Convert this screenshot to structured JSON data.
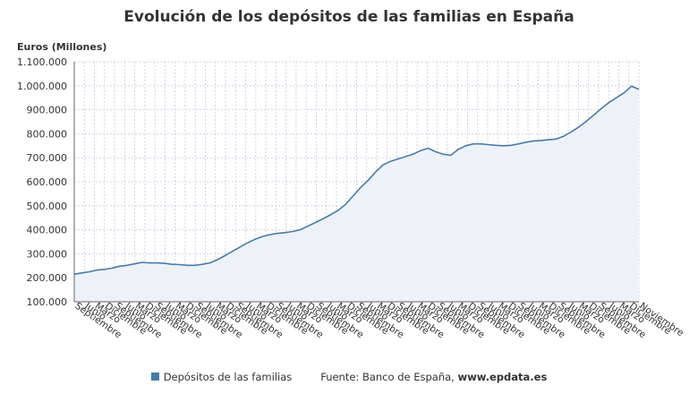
{
  "chart_data": {
    "type": "area",
    "title": "Evolución de los depósitos de las familias en España",
    "ylabel": "Euros (Millones)",
    "ylim": [
      100000,
      1100000
    ],
    "y_ticks": [
      100000,
      200000,
      300000,
      400000,
      500000,
      600000,
      700000,
      800000,
      900000,
      1000000,
      1100000
    ],
    "y_tick_labels": [
      "100.000",
      "200.000",
      "300.000",
      "400.000",
      "500.000",
      "600.000",
      "700.000",
      "800.000",
      "900.000",
      "1.000.000",
      "1.100.000"
    ],
    "x_tick_labels": [
      "Septiembre",
      "Junio",
      "Marzo",
      "Diciembre",
      "Septiembre",
      "Junio",
      "Marzo",
      "Diciembre",
      "Septiembre",
      "Junio",
      "Marzo",
      "Diciembre",
      "Septiembre",
      "Junio",
      "Marzo",
      "Diciembre",
      "Septiembre",
      "Junio",
      "Marzo",
      "Diciembre",
      "Septiembre",
      "Junio",
      "Marzo",
      "Diciembre",
      "Septiembre",
      "Junio",
      "Marzo",
      "Diciembre",
      "Septiembre",
      "Junio",
      "Marzo",
      "Diciembre",
      "Septiembre",
      "Junio",
      "Marzo",
      "Diciembre",
      "Septiembre",
      "Junio",
      "Marzo",
      "Diciembre",
      "Septiembre",
      "Junio",
      "Marzo",
      "Diciembre",
      "Septiembre",
      "Junio",
      "Marzo",
      "Diciembre",
      "Septiembre",
      "Junio",
      "Marzo",
      "Diciembre",
      "Septiembre",
      "Junio",
      "Marzo",
      "Diciembre",
      "Noviembre"
    ],
    "grid": true,
    "legend_position": "bottom",
    "series": [
      {
        "name": "Depósitos de las familias",
        "color": "#4a7aa7",
        "values": [
          215000,
          220000,
          225000,
          232000,
          235000,
          240000,
          248000,
          252000,
          258000,
          264000,
          262000,
          262000,
          260000,
          256000,
          255000,
          252000,
          252000,
          256000,
          262000,
          275000,
          292000,
          310000,
          328000,
          345000,
          360000,
          372000,
          380000,
          385000,
          388000,
          393000,
          400000,
          415000,
          430000,
          445000,
          462000,
          480000,
          505000,
          540000,
          575000,
          605000,
          640000,
          670000,
          685000,
          695000,
          705000,
          715000,
          730000,
          740000,
          725000,
          715000,
          710000,
          735000,
          750000,
          758000,
          758000,
          755000,
          752000,
          750000,
          752000,
          758000,
          765000,
          770000,
          772000,
          775000,
          778000,
          790000,
          808000,
          828000,
          852000,
          878000,
          905000,
          930000,
          950000,
          970000,
          998000,
          985000
        ]
      }
    ]
  },
  "legend": {
    "series_label": "Depósitos de las familias",
    "source_label": "Fuente: Banco de España, ",
    "source_site": "www.epdata.es"
  }
}
